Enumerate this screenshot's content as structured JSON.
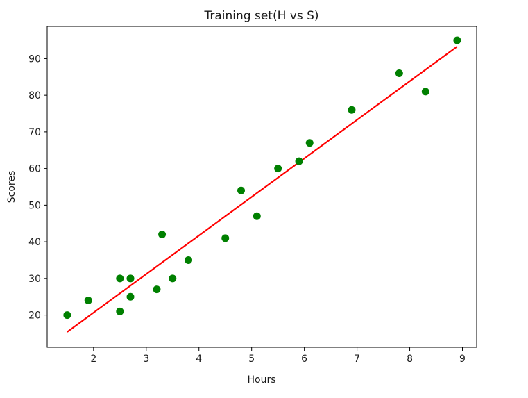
{
  "chart_data": {
    "type": "scatter",
    "title": "Training set(H vs S)",
    "xlabel": "Hours",
    "ylabel": "Scores",
    "xlim": [
      1.12,
      9.27
    ],
    "ylim": [
      11.2,
      98.8
    ],
    "xticks": [
      2,
      3,
      4,
      5,
      6,
      7,
      8,
      9
    ],
    "yticks": [
      20,
      30,
      40,
      50,
      60,
      70,
      80,
      90
    ],
    "grid": false,
    "colors": {
      "points": "#008000",
      "fit_line": "#ff0000"
    },
    "points": [
      {
        "x": 1.5,
        "y": 20
      },
      {
        "x": 1.9,
        "y": 24
      },
      {
        "x": 2.5,
        "y": 30
      },
      {
        "x": 2.5,
        "y": 21
      },
      {
        "x": 2.7,
        "y": 30
      },
      {
        "x": 2.7,
        "y": 25
      },
      {
        "x": 3.2,
        "y": 27
      },
      {
        "x": 3.3,
        "y": 42
      },
      {
        "x": 3.5,
        "y": 30
      },
      {
        "x": 3.8,
        "y": 35
      },
      {
        "x": 4.5,
        "y": 41
      },
      {
        "x": 4.8,
        "y": 54
      },
      {
        "x": 5.1,
        "y": 47
      },
      {
        "x": 5.5,
        "y": 60
      },
      {
        "x": 5.9,
        "y": 62
      },
      {
        "x": 6.1,
        "y": 67
      },
      {
        "x": 6.9,
        "y": 76
      },
      {
        "x": 7.8,
        "y": 86
      },
      {
        "x": 8.3,
        "y": 81
      },
      {
        "x": 8.9,
        "y": 95
      }
    ],
    "fit_line": {
      "x": [
        1.5,
        8.9
      ],
      "y": [
        15.4,
        93.3
      ]
    }
  }
}
